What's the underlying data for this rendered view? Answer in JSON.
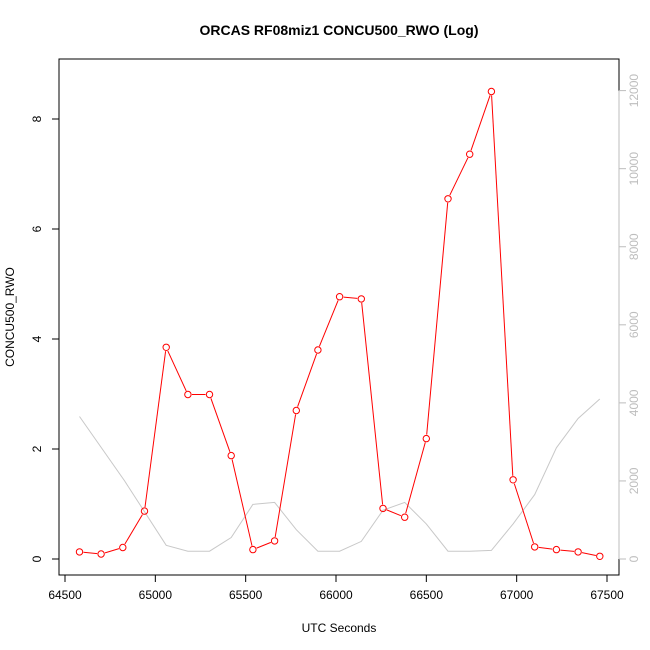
{
  "chart_data": {
    "type": "line",
    "title": "ORCAS RF08miz1 CONCU500_RWO (Log)",
    "xlabel": "UTC Seconds",
    "ylabel": "CONCU500_RWO",
    "xlim": [
      64500,
      67500
    ],
    "ylim": [
      0,
      8.8
    ],
    "y2lim": [
      0,
      12400
    ],
    "x_ticks": [
      64500,
      65000,
      65500,
      66000,
      66500,
      67000,
      67500
    ],
    "y_ticks": [
      0,
      2,
      4,
      6,
      8
    ],
    "y2_ticks": [
      0,
      2000,
      4000,
      6000,
      8000,
      10000,
      12000
    ],
    "grid": false,
    "colors": {
      "primary": "#ff0000",
      "secondary": "#c8c8c8",
      "axis": "#000000",
      "right_axis": "#bdbdbd"
    },
    "series": [
      {
        "axis": "left",
        "x": [
          64580,
          64700,
          64820,
          64940,
          65060,
          65180,
          65300,
          65420,
          65540,
          65660,
          65780,
          65900,
          66020,
          66140,
          66260,
          66380,
          66500,
          66620,
          66740,
          66860,
          66980,
          67100,
          67220,
          67340,
          67460
        ],
        "values": [
          0.13,
          0.09,
          0.21,
          0.87,
          3.85,
          2.99,
          2.99,
          1.88,
          0.17,
          0.33,
          2.7,
          3.8,
          4.77,
          4.73,
          0.92,
          0.76,
          2.19,
          6.55,
          7.36,
          8.5,
          1.44,
          0.22,
          0.17,
          0.13,
          0.05
        ]
      },
      {
        "axis": "right",
        "x": [
          64580,
          64830,
          65060,
          65180,
          65300,
          65420,
          65540,
          65660,
          65780,
          65900,
          66020,
          66140,
          66260,
          66380,
          66500,
          66620,
          66740,
          66860,
          66980,
          67100,
          67220,
          67340,
          67460
        ],
        "values": [
          3650,
          2000,
          350,
          200,
          200,
          550,
          1400,
          1450,
          750,
          200,
          200,
          450,
          1250,
          1450,
          900,
          200,
          200,
          220,
          900,
          1650,
          2850,
          3600,
          4100
        ]
      }
    ]
  }
}
